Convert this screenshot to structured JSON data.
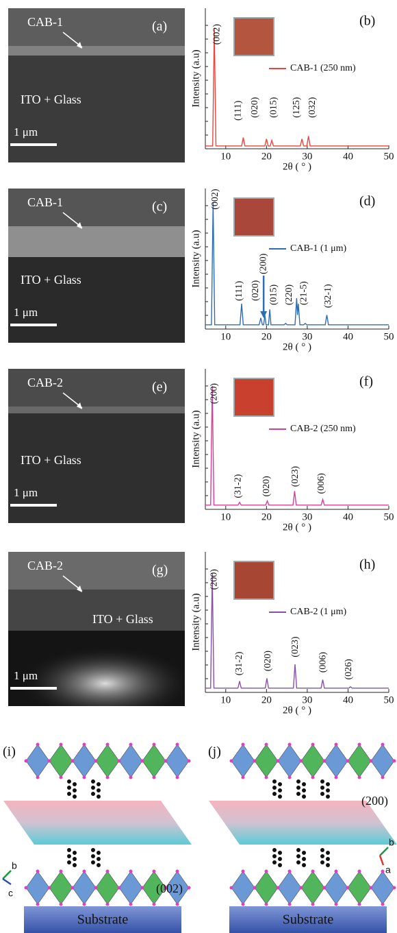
{
  "sem": [
    {
      "panel": "(a)",
      "film": "CAB-1",
      "substrate": "ITO + Glass",
      "scale": "1 μm"
    },
    {
      "panel": "(c)",
      "film": "CAB-1",
      "substrate": "ITO + Glass",
      "scale": "1 μm"
    },
    {
      "panel": "(e)",
      "film": "CAB-2",
      "substrate": "ITO + Glass",
      "scale": "1 μm"
    },
    {
      "panel": "(g)",
      "film": "CAB-2",
      "substrate": "ITO + Glass",
      "scale": "1 μm"
    }
  ],
  "chart_data": [
    {
      "type": "line",
      "panel": "(b)",
      "xlabel": "2θ ( ° )",
      "ylabel": "Intensity (a.u)",
      "xlim": [
        5,
        50
      ],
      "xticks": [
        10,
        20,
        30,
        40,
        50
      ],
      "ylim": [
        0,
        100
      ],
      "x": [
        5,
        6.8,
        7.2,
        7.6,
        13.9,
        14.3,
        14.7,
        19.6,
        20.0,
        20.4,
        20.9,
        21.3,
        21.7,
        28.3,
        28.7,
        29.1,
        29.9,
        30.3,
        30.7,
        50
      ],
      "series": [
        {
          "name": "CAB-1 (250 nm)",
          "color": "#e8453c",
          "values": [
            2,
            2,
            86,
            2,
            2,
            8,
            2,
            2,
            7,
            2,
            2,
            6,
            2,
            2,
            7,
            2,
            2,
            9,
            2,
            2
          ]
        }
      ],
      "annotations": [
        {
          "text": "(002)",
          "x": 7.9,
          "y": 74
        },
        {
          "text": "(111)",
          "x": 13.1,
          "y": 20
        },
        {
          "text": "(020)",
          "x": 17.2,
          "y": 22
        },
        {
          "text": "(015)",
          "x": 21.8,
          "y": 22
        },
        {
          "text": "(125)",
          "x": 27.5,
          "y": 22
        },
        {
          "text": "(032)",
          "x": 31.3,
          "y": 22
        }
      ]
    },
    {
      "type": "line",
      "panel": "(d)",
      "xlabel": "2θ ( ° )",
      "ylabel": "Intensity (a.u)",
      "xlim": [
        5,
        50
      ],
      "xticks": [
        10,
        20,
        30,
        40,
        50
      ],
      "ylim": [
        0,
        100
      ],
      "x": [
        5,
        6.5,
        6.9,
        7.3,
        13.5,
        13.9,
        14.3,
        18.2,
        18.6,
        19.0,
        19.3,
        19.6,
        19.9,
        20.5,
        20.8,
        21.1,
        24.3,
        24.7,
        25.1,
        27.0,
        27.4,
        27.6,
        27.8,
        28.2,
        29.1,
        29.5,
        29.9,
        34.4,
        34.8,
        35.2,
        50
      ],
      "series": [
        {
          "name": "CAB-1 (1 μm)",
          "color": "#2c6db5",
          "values": [
            3,
            3,
            90,
            3,
            3,
            18,
            3,
            3,
            8,
            3,
            3,
            10,
            3,
            3,
            14,
            3,
            3,
            4,
            3,
            3,
            22,
            10,
            18,
            3,
            3,
            4,
            3,
            3,
            10,
            3,
            3
          ]
        }
      ],
      "annotations": [
        {
          "text": "(002)",
          "x": 7.5,
          "y": 85
        },
        {
          "text": "(111)",
          "x": 13.4,
          "y": 20
        },
        {
          "text": "(020)",
          "x": 17.4,
          "y": 20
        },
        {
          "text": "(200)",
          "x": 19.3,
          "y": 39,
          "arrow": true
        },
        {
          "text": "(015)",
          "x": 21.8,
          "y": 17
        },
        {
          "text": "(220)",
          "x": 25.6,
          "y": 17
        },
        {
          "text": "(21-5)",
          "x": 29.2,
          "y": 17
        },
        {
          "text": "(32-1)",
          "x": 35.2,
          "y": 15
        }
      ]
    },
    {
      "type": "line",
      "panel": "(f)",
      "xlabel": "2θ ( ° )",
      "ylabel": "Intensity (a.u)",
      "xlim": [
        5,
        50
      ],
      "xticks": [
        10,
        20,
        30,
        40,
        50
      ],
      "ylim": [
        0,
        100
      ],
      "x": [
        5,
        6.3,
        6.7,
        7.1,
        13.0,
        13.4,
        13.8,
        19.8,
        20.2,
        20.6,
        26.5,
        26.9,
        27.3,
        33.4,
        33.8,
        34.2,
        50
      ],
      "series": [
        {
          "name": "CAB-2 (250 nm)",
          "color": "#d63f97",
          "values": [
            3,
            3,
            88,
            3,
            3,
            5,
            3,
            3,
            6,
            3,
            3,
            13,
            3,
            3,
            7,
            3,
            3
          ]
        }
      ],
      "annotations": [
        {
          "text": "(200)",
          "x": 7.2,
          "y": 75
        },
        {
          "text": "(31-2)",
          "x": 13.1,
          "y": 8
        },
        {
          "text": "(020)",
          "x": 20.1,
          "y": 9
        },
        {
          "text": "(023)",
          "x": 27.1,
          "y": 16
        },
        {
          "text": "(006)",
          "x": 33.5,
          "y": 11
        }
      ]
    },
    {
      "type": "line",
      "panel": "(h)",
      "xlabel": "2θ ( ° )",
      "ylabel": "Intensity (a.u)",
      "xlim": [
        5,
        50
      ],
      "xticks": [
        10,
        20,
        30,
        40,
        50
      ],
      "ylim": [
        0,
        100
      ],
      "x": [
        5,
        6.3,
        6.7,
        7.1,
        13.0,
        13.4,
        13.8,
        19.7,
        20.1,
        20.5,
        26.6,
        27.0,
        27.4,
        33.4,
        33.8,
        34.2,
        40.2,
        40.6,
        41.0,
        50
      ],
      "series": [
        {
          "name": "CAB-2 (1 μm)",
          "color": "#8a4fa8",
          "values": [
            3,
            3,
            85,
            3,
            3,
            8,
            3,
            3,
            10,
            3,
            3,
            20,
            3,
            3,
            9,
            3,
            3,
            4,
            3,
            3
          ]
        }
      ],
      "annotations": [
        {
          "text": "(200)",
          "x": 7.2,
          "y": 73
        },
        {
          "text": "(31-2)",
          "x": 13.4,
          "y": 12
        },
        {
          "text": "(020)",
          "x": 20.4,
          "y": 15
        },
        {
          "text": "(023)",
          "x": 27.1,
          "y": 25
        },
        {
          "text": "(006)",
          "x": 33.9,
          "y": 14
        },
        {
          "text": "(026)",
          "x": 40.2,
          "y": 9
        }
      ]
    }
  ],
  "structures": [
    {
      "panel": "(i)",
      "plane": "(002)",
      "substrate": "Substrate",
      "axes": [
        "b",
        "c"
      ]
    },
    {
      "panel": "(j)",
      "plane": "(200)",
      "substrate": "Substrate",
      "axes": [
        "b",
        "a"
      ]
    }
  ]
}
